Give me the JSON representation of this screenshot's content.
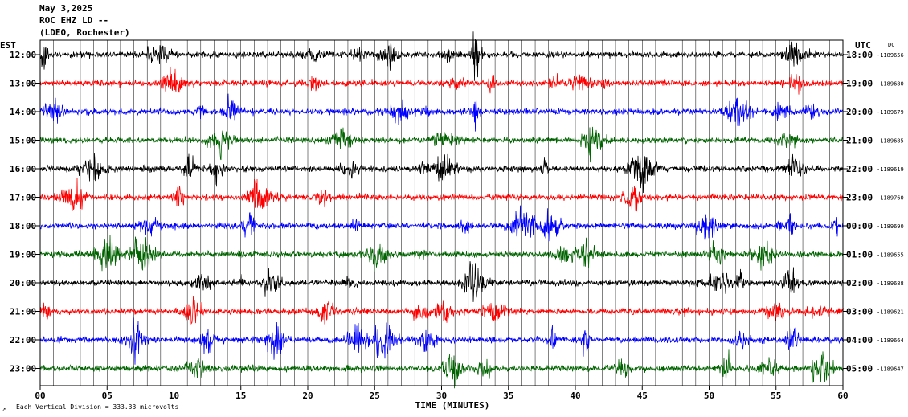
{
  "header": {
    "date": "May 3,2025",
    "station": "ROC EHZ LD --",
    "network": "(LDEO, Rochester)"
  },
  "labels": {
    "left_zone": "EST",
    "right_zone": "UTC",
    "dc": "DC",
    "footer": "Each Vertical Division =  333.33 microvolts"
  },
  "colors": [
    "#000000",
    "#ff0000",
    "#0000ff",
    "#006400"
  ],
  "chart_data": {
    "type": "line",
    "xlabel": "TIME (MINUTES)",
    "xlim": [
      0,
      60
    ],
    "x_ticks": [
      "00",
      "05",
      "10",
      "15",
      "20",
      "25",
      "30",
      "35",
      "40",
      "45",
      "50",
      "55",
      "60"
    ],
    "rows": [
      {
        "est": "12:00",
        "utc": "18:00",
        "dc": "-1189656"
      },
      {
        "est": "13:00",
        "utc": "19:00",
        "dc": "-1189680"
      },
      {
        "est": "14:00",
        "utc": "20:00",
        "dc": "-1189679"
      },
      {
        "est": "15:00",
        "utc": "21:00",
        "dc": "-1189685"
      },
      {
        "est": "16:00",
        "utc": "22:00",
        "dc": "-1189619"
      },
      {
        "est": "17:00",
        "utc": "23:00",
        "dc": "-1189760"
      },
      {
        "est": "18:00",
        "utc": "00:00",
        "dc": "-1189690"
      },
      {
        "est": "19:00",
        "utc": "01:00",
        "dc": "-1189655"
      },
      {
        "est": "20:00",
        "utc": "02:00",
        "dc": "-1189688"
      },
      {
        "est": "21:00",
        "utc": "03:00",
        "dc": "-1189621"
      },
      {
        "est": "22:00",
        "utc": "04:00",
        "dc": "-1189664"
      },
      {
        "est": "23:00",
        "utc": "05:00",
        "dc": "-1189647"
      }
    ]
  }
}
